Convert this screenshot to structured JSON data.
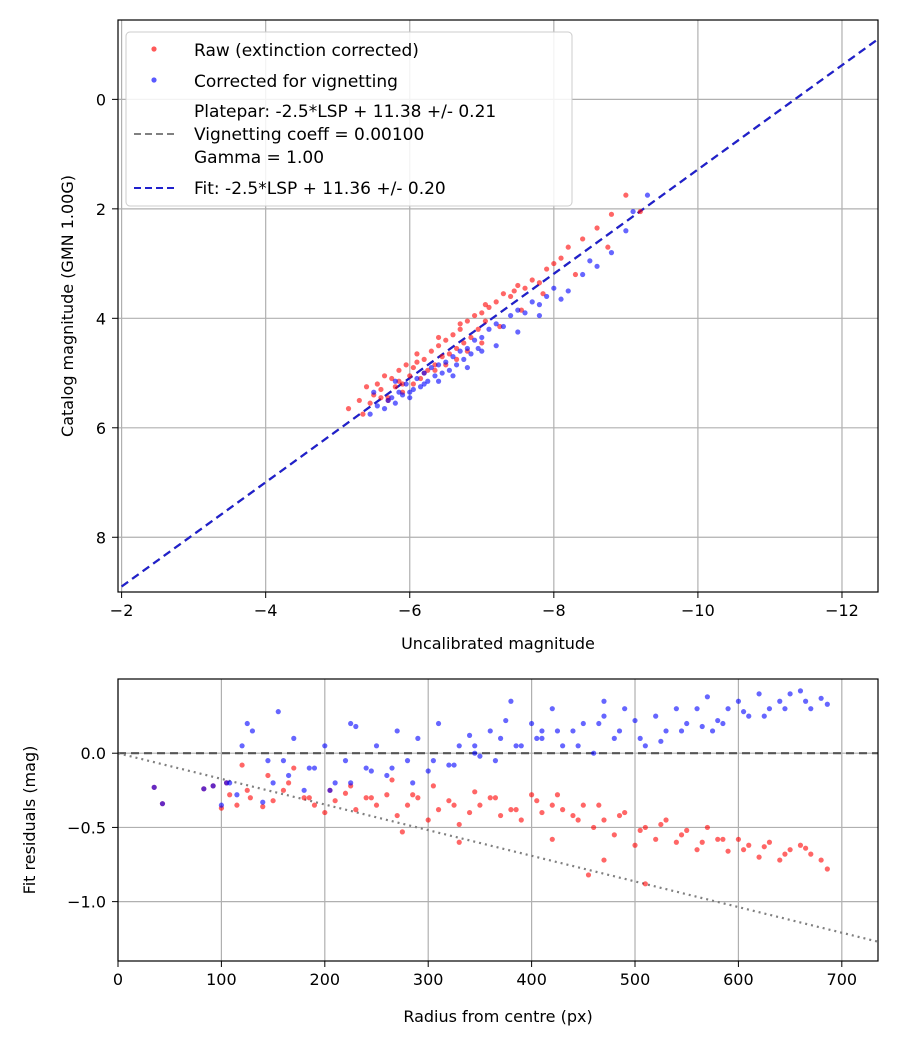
{
  "chart_data": [
    {
      "type": "scatter",
      "xlabel": "Uncalibrated magnitude",
      "ylabel": "Catalog magnitude (GMN 1.00G)",
      "xlim": [
        -1.95,
        -12.5
      ],
      "ylim": [
        9.0,
        -1.45
      ],
      "x_ticks": [
        -2,
        -4,
        -6,
        -8,
        -10,
        -12
      ],
      "x_tick_labels": [
        "−2",
        "−4",
        "−6",
        "−8",
        "−10",
        "−12"
      ],
      "y_ticks": [
        0,
        2,
        4,
        6,
        8
      ],
      "y_tick_labels": [
        "0",
        "2",
        "4",
        "6",
        "8"
      ],
      "grid": true,
      "legend_position": "top-left",
      "legend": [
        {
          "marker": "dot",
          "color": "#ff0000",
          "label": "Raw (extinction corrected)"
        },
        {
          "marker": "dot",
          "color": "#0000ff",
          "label": "Corrected for vignetting"
        },
        {
          "marker": "dashed-line",
          "color": "#808080",
          "label_lines": [
            "Platepar: -2.5*LSP + 11.38 +/- 0.21",
            "Vignetting coeff = 0.00100",
            "Gamma = 1.00"
          ]
        },
        {
          "marker": "dashed-line",
          "color": "#2020cc",
          "label": "Fit: -2.5*LSP + 11.36 +/- 0.20"
        }
      ],
      "lines": [
        {
          "name": "Platepar",
          "x": [
            -2.0,
            -12.5
          ],
          "y": [
            8.9,
            -1.1
          ],
          "color": "#808080",
          "style": "dashed"
        },
        {
          "name": "Fit",
          "x": [
            -2.0,
            -12.5
          ],
          "y": [
            8.9,
            -1.1
          ],
          "color": "#2020cc",
          "style": "dashed"
        }
      ],
      "series": [
        {
          "name": "Raw (extinction corrected)",
          "color": "#ff0000",
          "x": [
            -5.15,
            -5.3,
            -5.4,
            -5.5,
            -5.55,
            -5.6,
            -5.65,
            -5.7,
            -5.75,
            -5.8,
            -5.85,
            -5.9,
            -5.95,
            -6.0,
            -6.05,
            -6.1,
            -6.15,
            -6.2,
            -6.25,
            -6.3,
            -6.35,
            -6.4,
            -6.45,
            -6.5,
            -6.55,
            -6.6,
            -6.65,
            -6.7,
            -6.75,
            -6.8,
            -6.85,
            -6.9,
            -6.95,
            -7.0,
            -7.05,
            -7.1,
            -7.2,
            -7.3,
            -7.4,
            -7.5,
            -7.6,
            -7.7,
            -7.8,
            -7.9,
            -8.0,
            -8.1,
            -8.2,
            -8.4,
            -8.6,
            -8.8,
            -9.0,
            -5.35,
            -5.45,
            -5.7,
            -5.9,
            -6.05,
            -6.2,
            -6.35,
            -6.5,
            -6.65,
            -6.8,
            -7.0,
            -7.25,
            -7.55,
            -7.85,
            -8.3,
            -8.75,
            -9.2,
            -5.6,
            -5.85,
            -6.1,
            -6.4,
            -6.7,
            -7.05,
            -7.45
          ],
          "y": [
            5.65,
            5.5,
            5.25,
            5.4,
            5.2,
            5.3,
            5.05,
            5.45,
            5.1,
            5.25,
            4.95,
            5.2,
            4.85,
            5.05,
            4.9,
            4.8,
            5.1,
            4.75,
            4.95,
            4.6,
            4.85,
            4.5,
            4.7,
            4.4,
            4.65,
            4.3,
            4.55,
            4.2,
            4.45,
            4.05,
            4.35,
            3.95,
            4.2,
            3.9,
            4.05,
            3.8,
            3.7,
            3.55,
            3.6,
            3.4,
            3.45,
            3.3,
            3.35,
            3.1,
            3.0,
            2.9,
            2.7,
            2.55,
            2.35,
            2.1,
            1.75,
            5.75,
            5.55,
            5.5,
            5.35,
            5.2,
            5.0,
            4.95,
            4.85,
            4.75,
            4.6,
            4.45,
            4.15,
            3.85,
            3.55,
            3.2,
            2.7,
            2.05,
            5.45,
            5.15,
            4.65,
            4.35,
            4.1,
            3.75,
            3.5
          ]
        },
        {
          "name": "Corrected for vignetting",
          "color": "#0000ff",
          "x": [
            -5.45,
            -5.55,
            -5.65,
            -5.7,
            -5.75,
            -5.8,
            -5.85,
            -5.9,
            -5.95,
            -6.0,
            -6.05,
            -6.1,
            -6.15,
            -6.2,
            -6.25,
            -6.3,
            -6.35,
            -6.4,
            -6.45,
            -6.5,
            -6.55,
            -6.6,
            -6.65,
            -6.7,
            -6.75,
            -6.8,
            -6.85,
            -6.9,
            -6.95,
            -7.0,
            -7.1,
            -7.2,
            -7.3,
            -7.4,
            -7.5,
            -7.6,
            -7.7,
            -7.8,
            -7.9,
            -8.0,
            -8.2,
            -8.4,
            -8.6,
            -8.8,
            -9.0,
            -9.3,
            -5.5,
            -5.8,
            -6.0,
            -6.2,
            -6.4,
            -6.6,
            -6.8,
            -7.0,
            -7.2,
            -7.5,
            -7.8,
            -8.1,
            -8.5,
            -9.1
          ],
          "y": [
            5.75,
            5.6,
            5.65,
            5.5,
            5.45,
            5.55,
            5.35,
            5.4,
            5.2,
            5.45,
            5.3,
            5.1,
            5.25,
            5.0,
            5.15,
            4.9,
            5.05,
            4.85,
            5.0,
            4.8,
            4.95,
            4.7,
            4.85,
            4.6,
            4.75,
            4.55,
            4.65,
            4.4,
            4.55,
            4.35,
            4.2,
            4.1,
            4.15,
            3.95,
            3.85,
            3.9,
            3.7,
            3.75,
            3.6,
            3.45,
            3.5,
            3.2,
            3.05,
            2.8,
            2.4,
            1.75,
            5.35,
            5.15,
            5.35,
            5.2,
            5.15,
            5.05,
            4.9,
            4.6,
            4.5,
            4.25,
            3.95,
            3.65,
            2.95,
            2.05
          ]
        }
      ]
    },
    {
      "type": "scatter",
      "xlabel": "Radius from centre (px)",
      "ylabel": "Fit residuals (mag)",
      "xlim": [
        0,
        735
      ],
      "ylim": [
        -1.4,
        0.5
      ],
      "x_ticks": [
        0,
        100,
        200,
        300,
        400,
        500,
        600,
        700
      ],
      "x_tick_labels": [
        "0",
        "100",
        "200",
        "300",
        "400",
        "500",
        "600",
        "700"
      ],
      "y_ticks": [
        0.0,
        -0.5,
        -1.0
      ],
      "y_tick_labels": [
        "0.0",
        "−0.5",
        "−1.0"
      ],
      "grid": true,
      "lines": [
        {
          "name": "zero",
          "x": [
            0,
            735
          ],
          "y": [
            0,
            0
          ],
          "color": "#555555",
          "style": "dashed"
        },
        {
          "name": "vignetting model",
          "x": [
            0,
            735
          ],
          "y": [
            0.0,
            -1.27
          ],
          "color": "#808080",
          "style": "dotted"
        }
      ],
      "series": [
        {
          "name": "Raw (extinction corrected)",
          "color": "#ff0000",
          "x": [
            35,
            43,
            83,
            92,
            100,
            108,
            115,
            120,
            128,
            140,
            150,
            160,
            170,
            180,
            190,
            200,
            210,
            220,
            230,
            240,
            250,
            260,
            270,
            280,
            290,
            300,
            310,
            320,
            330,
            340,
            350,
            360,
            370,
            380,
            390,
            400,
            410,
            420,
            430,
            440,
            450,
            460,
            470,
            480,
            490,
            500,
            510,
            520,
            530,
            540,
            550,
            560,
            570,
            580,
            590,
            600,
            610,
            620,
            630,
            640,
            650,
            660,
            670,
            680,
            686,
            105,
            125,
            145,
            165,
            185,
            205,
            225,
            245,
            265,
            285,
            305,
            325,
            345,
            365,
            385,
            405,
            425,
            445,
            465,
            485,
            505,
            525,
            545,
            565,
            585,
            605,
            625,
            645,
            665,
            275,
            330,
            420,
            455,
            470,
            510
          ],
          "y": [
            -0.23,
            -0.34,
            -0.24,
            -0.22,
            -0.37,
            -0.28,
            -0.35,
            -0.08,
            -0.3,
            -0.36,
            -0.32,
            -0.25,
            -0.1,
            -0.3,
            -0.35,
            -0.4,
            -0.32,
            -0.27,
            -0.38,
            -0.3,
            -0.35,
            -0.28,
            -0.42,
            -0.35,
            -0.3,
            -0.45,
            -0.38,
            -0.32,
            -0.48,
            -0.4,
            -0.35,
            -0.3,
            -0.42,
            -0.38,
            -0.45,
            -0.28,
            -0.4,
            -0.35,
            -0.38,
            -0.42,
            -0.35,
            -0.5,
            -0.45,
            -0.55,
            -0.4,
            -0.62,
            -0.5,
            -0.58,
            -0.45,
            -0.6,
            -0.52,
            -0.65,
            -0.5,
            -0.58,
            -0.66,
            -0.58,
            -0.62,
            -0.7,
            -0.6,
            -0.72,
            -0.65,
            -0.62,
            -0.68,
            -0.72,
            -0.78,
            -0.2,
            -0.25,
            -0.15,
            -0.2,
            -0.3,
            -0.25,
            -0.22,
            -0.3,
            -0.18,
            -0.28,
            -0.22,
            -0.35,
            -0.26,
            -0.3,
            -0.38,
            -0.32,
            -0.28,
            -0.45,
            -0.35,
            -0.42,
            -0.52,
            -0.48,
            -0.55,
            -0.6,
            -0.58,
            -0.65,
            -0.63,
            -0.68,
            -0.64,
            -0.53,
            -0.6,
            -0.58,
            -0.82,
            -0.72,
            -0.88
          ]
        },
        {
          "name": "Corrected for vignetting",
          "color": "#0000ff",
          "x": [
            35,
            43,
            83,
            92,
            100,
            108,
            115,
            120,
            125,
            130,
            140,
            150,
            155,
            160,
            170,
            180,
            190,
            200,
            210,
            220,
            230,
            240,
            250,
            260,
            270,
            280,
            290,
            300,
            310,
            320,
            330,
            340,
            350,
            360,
            370,
            380,
            390,
            400,
            410,
            420,
            430,
            440,
            450,
            460,
            470,
            480,
            490,
            500,
            510,
            520,
            530,
            540,
            550,
            560,
            570,
            580,
            590,
            600,
            610,
            620,
            630,
            640,
            650,
            660,
            670,
            680,
            686,
            105,
            145,
            165,
            185,
            205,
            225,
            245,
            265,
            285,
            305,
            325,
            345,
            365,
            385,
            405,
            425,
            445,
            465,
            485,
            505,
            525,
            545,
            565,
            585,
            605,
            625,
            645,
            665,
            225,
            345,
            375,
            410,
            470,
            575
          ],
          "y": [
            -0.23,
            -0.34,
            -0.24,
            -0.22,
            -0.35,
            -0.2,
            -0.28,
            0.05,
            0.2,
            0.15,
            -0.33,
            -0.2,
            0.28,
            -0.05,
            0.1,
            -0.25,
            -0.1,
            0.05,
            -0.2,
            -0.05,
            0.18,
            -0.1,
            0.05,
            -0.15,
            0.15,
            -0.05,
            0.1,
            -0.12,
            0.2,
            -0.08,
            0.05,
            0.12,
            -0.02,
            0.15,
            0.1,
            0.35,
            0.05,
            0.2,
            0.1,
            0.3,
            0.05,
            0.15,
            0.2,
            0.0,
            0.25,
            0.1,
            0.3,
            0.22,
            0.05,
            0.25,
            0.15,
            0.3,
            0.2,
            0.3,
            0.38,
            0.22,
            0.3,
            0.35,
            0.25,
            0.4,
            0.3,
            0.35,
            0.4,
            0.42,
            0.3,
            0.37,
            0.33,
            -0.2,
            -0.05,
            -0.15,
            -0.1,
            -0.25,
            -0.2,
            -0.12,
            -0.1,
            -0.2,
            -0.05,
            -0.08,
            0.0,
            -0.05,
            0.05,
            0.1,
            0.15,
            0.05,
            0.2,
            0.15,
            0.1,
            0.08,
            0.15,
            0.18,
            0.2,
            0.28,
            0.25,
            0.3,
            0.35,
            0.2,
            0.05,
            0.22,
            0.15,
            0.35,
            0.15
          ]
        }
      ]
    }
  ]
}
